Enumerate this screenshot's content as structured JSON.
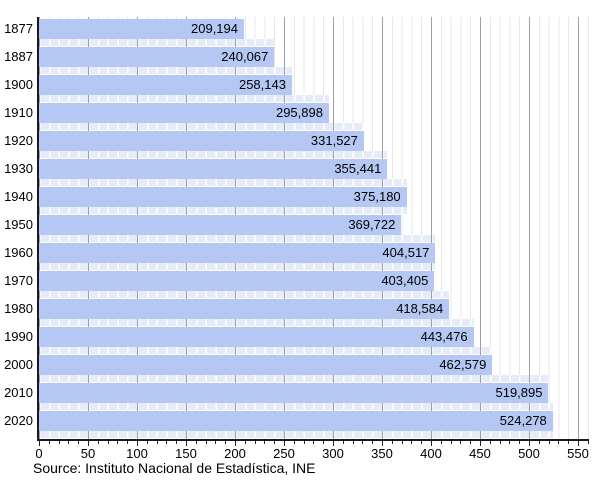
{
  "chart_data": {
    "type": "bar",
    "orientation": "horizontal",
    "title": "",
    "categories": [
      "1877",
      "1887",
      "1900",
      "1910",
      "1920",
      "1930",
      "1940",
      "1950",
      "1960",
      "1970",
      "1980",
      "1990",
      "2000",
      "2010",
      "2020"
    ],
    "values": [
      209194,
      240067,
      258143,
      295898,
      331527,
      355441,
      375180,
      369722,
      404517,
      403405,
      418584,
      443476,
      462579,
      519895,
      524278
    ],
    "value_label_format": "thousands-comma",
    "x_axis": {
      "tick_labels": [
        "0",
        "50",
        "100",
        "150",
        "200",
        "250",
        "300",
        "350",
        "400",
        "450",
        "500",
        "550"
      ],
      "tick_values": [
        0,
        50,
        100,
        150,
        200,
        250,
        300,
        350,
        400,
        450,
        500,
        550
      ],
      "minor_tick_step": 10,
      "max_value": 560,
      "unit": "thousands"
    },
    "grid": {
      "minor_step": 10,
      "major_step": 50,
      "grid_on": true
    },
    "source_note": "Source: Instituto Nacional de Estadística, INE",
    "colors": {
      "bar": "#b4c8f3",
      "bar_gap_strip": "#e6ecf7",
      "grid_minor": "#e7e7e7",
      "grid_major": "#9f9f9f",
      "axis": "#1a1a1a",
      "text": "#000000"
    }
  }
}
